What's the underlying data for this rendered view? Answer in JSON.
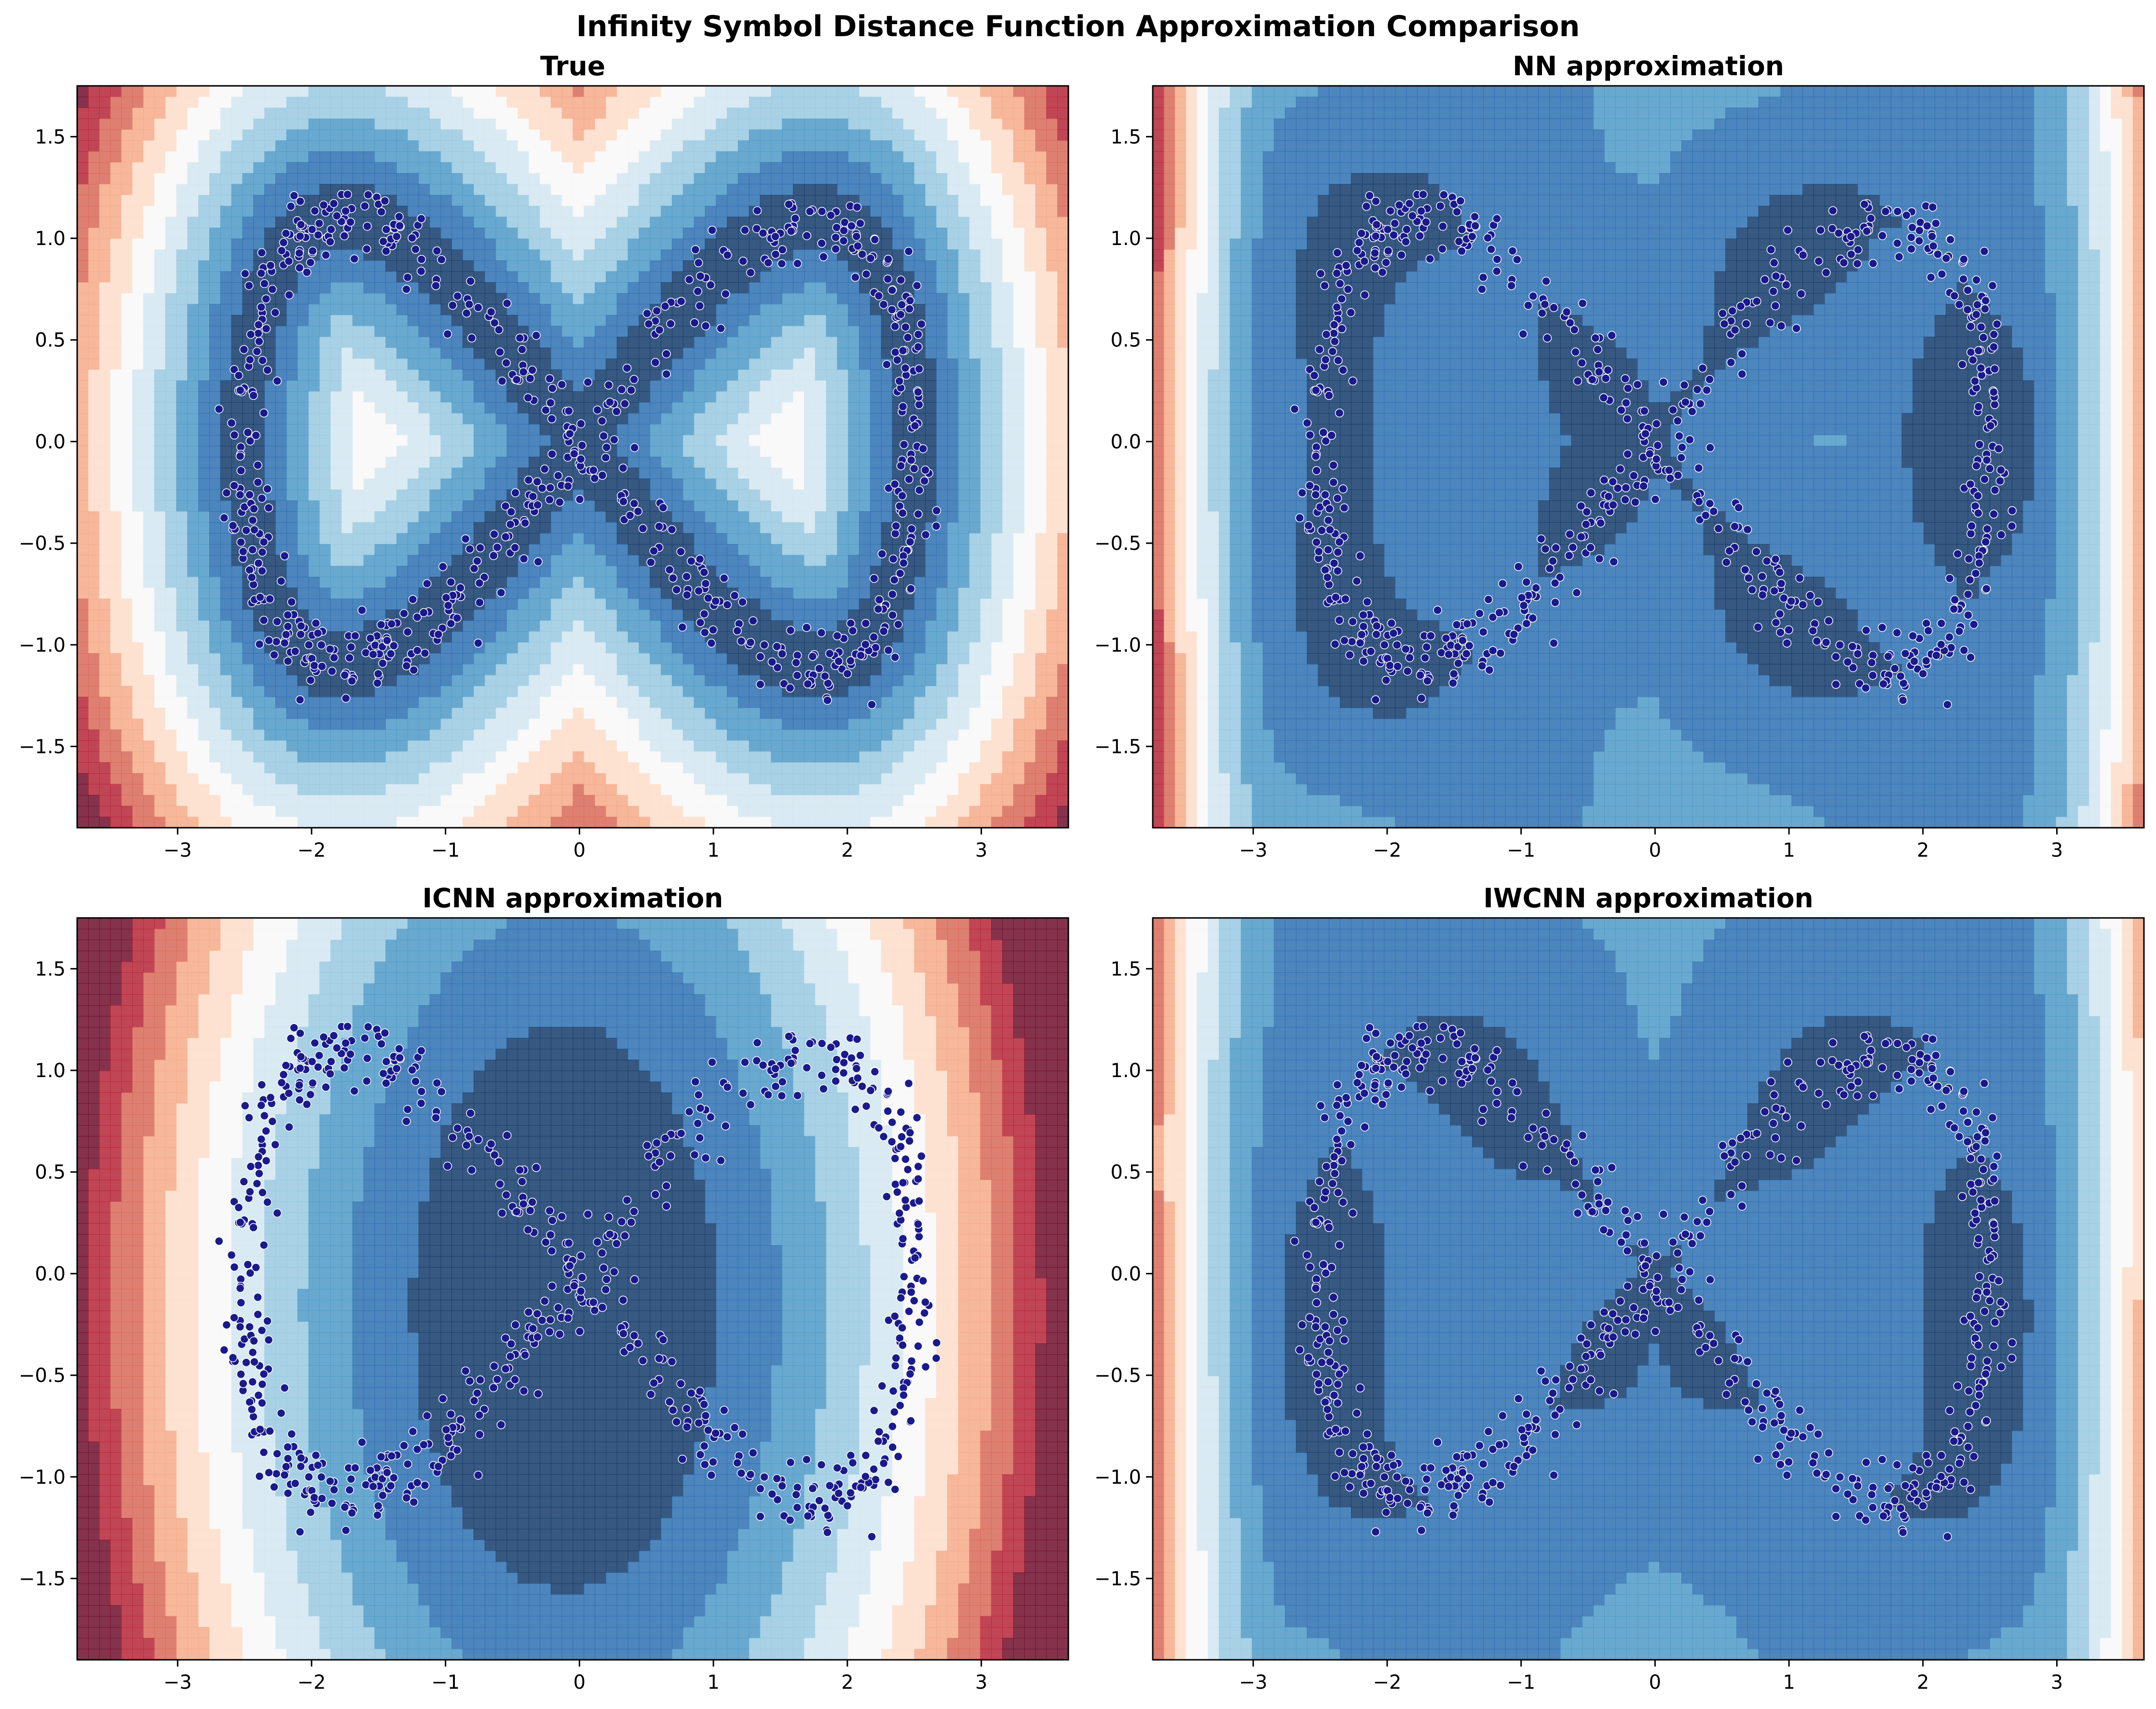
{
  "figure": {
    "title": "Infinity Symbol Distance Function Approximation Comparison"
  },
  "colors": {
    "colormap": "RdBu_r",
    "levels": [
      "#053061",
      "#2166ac",
      "#4393c3",
      "#92c5de",
      "#d1e5f0",
      "#f7f7f7",
      "#fddbc7",
      "#f4a582",
      "#d6604d",
      "#b2182b",
      "#67001f"
    ],
    "point_fill": "#1a1a8c",
    "point_edge": "#ffffff"
  },
  "chart_data": [
    {
      "type": "contour",
      "title": "True",
      "xlim": [
        -3.75,
        3.65
      ],
      "ylim": [
        -1.9,
        1.75
      ],
      "xticks": [
        -3,
        -2,
        -1,
        0,
        1,
        2,
        3
      ],
      "xtick_labels": [
        "−3",
        "−2",
        "−1",
        "0",
        "1",
        "2",
        "3"
      ],
      "yticks": [
        -1.5,
        -1.0,
        -0.5,
        0.0,
        0.5,
        1.0,
        1.5
      ],
      "ytick_labels": [
        "−1.5",
        "−1.0",
        "−0.5",
        "0.0",
        "0.5",
        "1.0",
        "1.5"
      ],
      "field": "distance to lemniscate x=2.5 sin(t), y=1.1 sin(2t)",
      "scatter": "noisy samples on the infinity curve"
    },
    {
      "type": "contour",
      "title": "NN approximation",
      "xlim": [
        -3.75,
        3.65
      ],
      "ylim": [
        -1.9,
        1.75
      ],
      "xticks": [
        -3,
        -2,
        -1,
        0,
        1,
        2,
        3
      ],
      "xtick_labels": [
        "−3",
        "−2",
        "−1",
        "0",
        "1",
        "2",
        "3"
      ],
      "yticks": [
        -1.5,
        -1.0,
        -0.5,
        0.0,
        0.5,
        1.0,
        1.5
      ],
      "ytick_labels": [
        "−1.5",
        "−1.0",
        "−0.5",
        "0.0",
        "0.5",
        "1.0",
        "1.5"
      ],
      "scatter": "noisy samples on the infinity curve"
    },
    {
      "type": "contour",
      "title": "ICNN approximation",
      "xlim": [
        -3.75,
        3.65
      ],
      "ylim": [
        -1.9,
        1.75
      ],
      "xticks": [
        -3,
        -2,
        -1,
        0,
        1,
        2,
        3
      ],
      "xtick_labels": [
        "−3",
        "−2",
        "−1",
        "0",
        "1",
        "2",
        "3"
      ],
      "yticks": [
        -1.5,
        -1.0,
        -0.5,
        0.0,
        0.5,
        1.0,
        1.5
      ],
      "ytick_labels": [
        "−1.5",
        "−1.0",
        "−0.5",
        "0.0",
        "0.5",
        "1.0",
        "1.5"
      ],
      "scatter": "noisy samples on the infinity curve"
    },
    {
      "type": "contour",
      "title": "IWCNN approximation",
      "xlim": [
        -3.75,
        3.65
      ],
      "ylim": [
        -1.9,
        1.75
      ],
      "xticks": [
        -3,
        -2,
        -1,
        0,
        1,
        2,
        3
      ],
      "xtick_labels": [
        "−3",
        "−2",
        "−1",
        "0",
        "1",
        "2",
        "3"
      ],
      "yticks": [
        -1.5,
        -1.0,
        -0.5,
        0.0,
        0.5,
        1.0,
        1.5
      ],
      "ytick_labels": [
        "−1.5",
        "−1.0",
        "−0.5",
        "0.0",
        "0.5",
        "1.0",
        "1.5"
      ],
      "scatter": "noisy samples on the infinity curve"
    }
  ]
}
